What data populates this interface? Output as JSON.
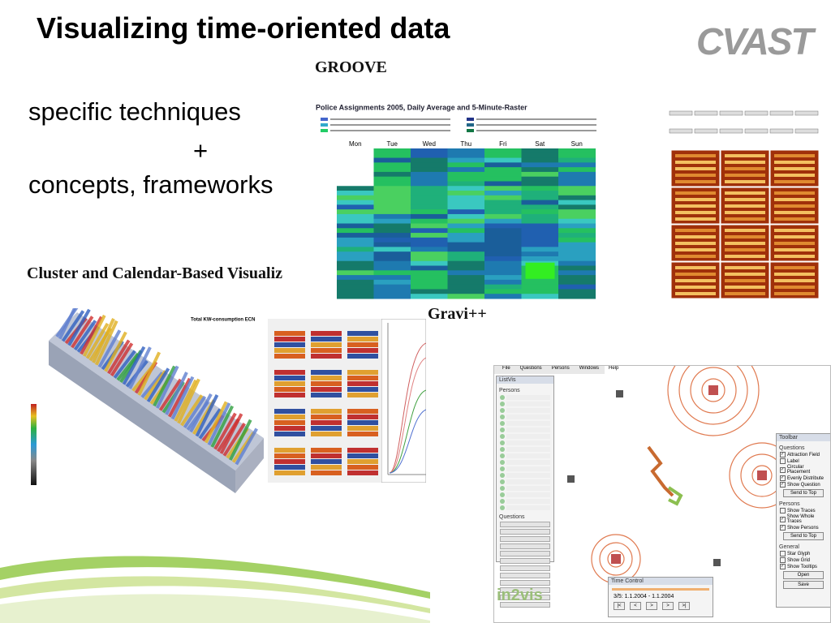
{
  "header": {
    "title": "Visualizing time-oriented data",
    "logo": "CVAST"
  },
  "text": {
    "line1": "specific techniques",
    "plus": "+",
    "line2": "concepts, frameworks"
  },
  "groove": {
    "label": "GROOVE",
    "chart_title": "Police Assignments 2005, Daily Average and 5-Minute-Raster",
    "days": [
      "Mon",
      "Tue",
      "Wed",
      "Thu",
      "Fri",
      "Sat",
      "Sun"
    ]
  },
  "cluster": {
    "label": "Cluster and Calendar-Based Visualiz",
    "chart_title": "Total KW-consumption ECN"
  },
  "gravi": {
    "label": "Gravi++",
    "menu": [
      "File",
      "Questions",
      "Persons",
      "Windows",
      "Help"
    ],
    "panels": {
      "listvis": "ListVis",
      "persons": "Persons",
      "questions": "Questions",
      "toolbar": "Toolbar",
      "time_control": "Time Control"
    },
    "toolbar": [
      {
        "heading": "Questions",
        "items": [
          {
            "label": "Attraction Field",
            "checked": true
          },
          {
            "label": "Label",
            "checked": false
          },
          {
            "label": "Circular Placement",
            "checked": true
          },
          {
            "label": "Evenly Distribute",
            "checked": true
          },
          {
            "label": "Show Question",
            "checked": true
          }
        ],
        "button": "Send to Top"
      },
      {
        "heading": "Persons",
        "items": [
          {
            "label": "Show Traces",
            "checked": false
          },
          {
            "label": "Show Whole Traces",
            "checked": true
          },
          {
            "label": "Show Persons",
            "checked": true
          }
        ],
        "button": "Send to Top"
      },
      {
        "heading": "General",
        "items": [
          {
            "label": "Star Glyph",
            "checked": false
          },
          {
            "label": "Show Grid",
            "checked": false
          },
          {
            "label": "Show Tooltips",
            "checked": true
          }
        ],
        "button": "Open"
      }
    ],
    "save": "Save",
    "time": "3/5: 1.1.2004 - 1.1.2004",
    "brand": "in2vis"
  }
}
